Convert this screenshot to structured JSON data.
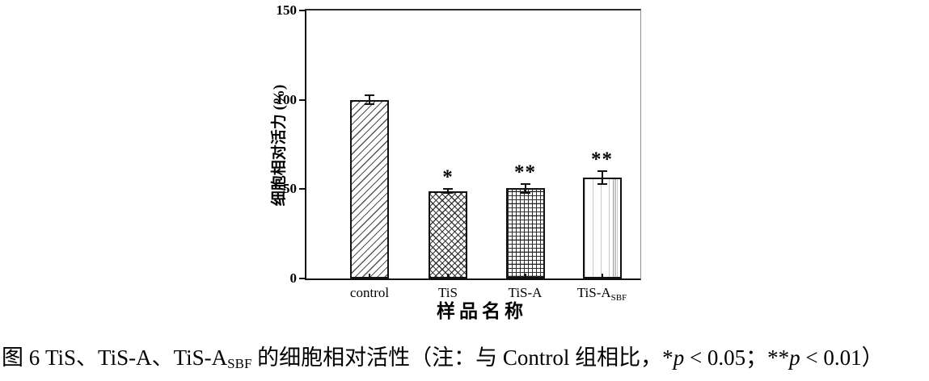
{
  "chart_data": {
    "type": "bar",
    "title": "",
    "xlabel": "样品名称",
    "ylabel": "细胞相对活力 (%)",
    "ylim": [
      0,
      150
    ],
    "yticks": [
      0,
      50,
      100,
      150
    ],
    "grid": false,
    "legend": "none",
    "categories": [
      {
        "label": "control",
        "sub": ""
      },
      {
        "label": "TiS",
        "sub": ""
      },
      {
        "label": "TiS-A",
        "sub": ""
      },
      {
        "label": "TiS-A",
        "sub": "SBF"
      }
    ],
    "series": [
      {
        "name": "细胞相对活力 (%)",
        "values": [
          100,
          49,
          50.5,
          56.5
        ],
        "errors": [
          2.5,
          1,
          2.5,
          3.5
        ],
        "significance": [
          "",
          "*",
          "**",
          "**"
        ],
        "patterns": [
          "diagonal-forward",
          "diagonal-cross",
          "grid",
          "vertical-sparse"
        ]
      }
    ]
  },
  "caption": {
    "parts": [
      {
        "t": "图 6 TiS、TiS-A、TiS-A",
        "style": "normal"
      },
      {
        "t": "SBF",
        "style": "sub"
      },
      {
        "t": " 的细胞相对活性（注：与 Control 组相比，*",
        "style": "normal"
      },
      {
        "t": "p",
        "style": "italic"
      },
      {
        "t": " < 0.05；**",
        "style": "normal"
      },
      {
        "t": "p",
        "style": "italic"
      },
      {
        "t": " < 0.01）",
        "style": "normal"
      }
    ]
  },
  "colors": {
    "axis": "#1c1c1c",
    "hatch": "#2e2e2e",
    "text": "#000000",
    "background": "#ffffff"
  }
}
